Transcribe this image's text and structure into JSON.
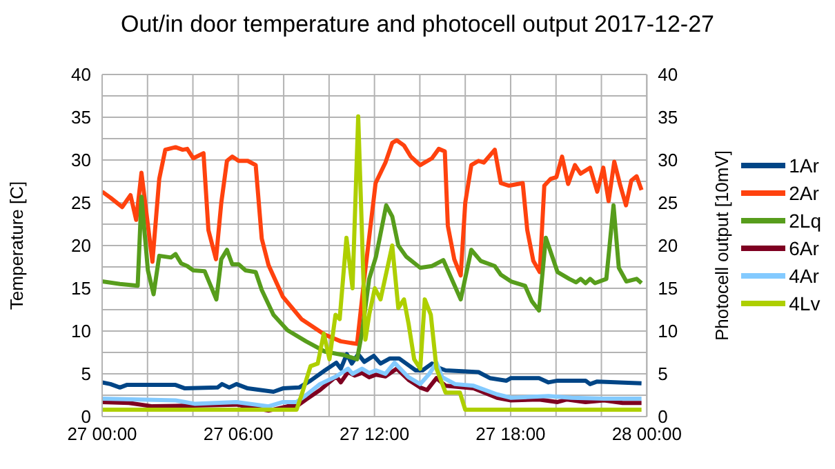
{
  "chart_data": {
    "type": "line",
    "title": "Out/in door temperature and photocell output 2017-12-27",
    "ylabel": "Temperature [C]",
    "y2label": "Photocell output [10mV]",
    "xlim": [
      "2017-12-27T00:00",
      "2017-12-28T00:00"
    ],
    "xticks": [
      {
        "value": "2017-12-27T00:00",
        "label": "27 00:00"
      },
      {
        "value": "2017-12-27T02:00",
        "label": null
      },
      {
        "value": "2017-12-27T04:00",
        "label": null
      },
      {
        "value": "2017-12-27T06:00",
        "label": "27 06:00"
      },
      {
        "value": "2017-12-27T08:00",
        "label": null
      },
      {
        "value": "2017-12-27T10:00",
        "label": null
      },
      {
        "value": "2017-12-27T12:00",
        "label": "27 12:00"
      },
      {
        "value": "2017-12-27T14:00",
        "label": null
      },
      {
        "value": "2017-12-27T16:00",
        "label": null
      },
      {
        "value": "2017-12-27T18:00",
        "label": "27 18:00"
      },
      {
        "value": "2017-12-27T20:00",
        "label": null
      },
      {
        "value": "2017-12-27T22:00",
        "label": null
      },
      {
        "value": "2017-12-28T00:00",
        "label": "28 00:00"
      }
    ],
    "ylim": [
      0,
      40
    ],
    "yticks": [
      0,
      {
        "value": 2.5,
        "label": null
      },
      5,
      {
        "value": 7.5,
        "label": null
      },
      10,
      {
        "value": 12.5,
        "label": null
      },
      15,
      {
        "value": 17.5,
        "label": null
      },
      20,
      {
        "value": 22.5,
        "label": null
      },
      25,
      {
        "value": 27.5,
        "label": null
      },
      30,
      {
        "value": 32.5,
        "label": null
      },
      35,
      {
        "value": 37.5,
        "label": null
      },
      40
    ],
    "y2lim": [
      0,
      40
    ],
    "y2ticks": [
      0,
      5,
      10,
      15,
      20,
      25,
      30,
      35,
      40
    ],
    "grid": true,
    "legend": "right",
    "marker": "none",
    "line_style": "solid",
    "series": [
      {
        "name": "1Ar",
        "color": "#004586",
        "x": [
          "2017-12-27T00:00",
          "2017-12-27T00:22",
          "2017-12-27T00:47",
          "2017-12-27T01:05",
          "2017-12-27T03:14",
          "2017-12-27T03:39",
          "2017-12-27T05:05",
          "2017-12-27T05:17",
          "2017-12-27T05:36",
          "2017-12-27T05:55",
          "2017-12-27T06:25",
          "2017-12-27T07:33",
          "2017-12-27T07:58",
          "2017-12-27T08:41",
          "2017-12-27T09:11",
          "2017-12-27T09:49",
          "2017-12-27T10:19",
          "2017-12-27T10:31",
          "2017-12-27T10:47",
          "2017-12-27T11:00",
          "2017-12-27T11:17",
          "2017-12-27T11:33",
          "2017-12-27T11:58",
          "2017-12-27T12:16",
          "2017-12-27T12:41",
          "2017-12-27T13:05",
          "2017-12-27T13:24",
          "2017-12-27T13:49",
          "2017-12-27T14:07",
          "2017-12-27T14:32",
          "2017-12-27T14:50",
          "2017-12-27T15:08",
          "2017-12-27T16:35",
          "2017-12-27T17:05",
          "2017-12-27T17:49",
          "2017-12-27T18:01",
          "2017-12-27T19:15",
          "2017-12-27T19:40",
          "2017-12-27T20:04",
          "2017-12-27T21:18",
          "2017-12-27T21:30",
          "2017-12-27T21:49",
          "2017-12-27T23:46"
        ],
        "values": [
          4.0,
          3.8,
          3.4,
          3.7,
          3.7,
          3.3,
          3.4,
          3.8,
          3.4,
          3.8,
          3.3,
          2.9,
          3.3,
          3.4,
          4.2,
          5.4,
          6.3,
          5.6,
          7.3,
          6.2,
          7.3,
          6.4,
          7.1,
          6.2,
          6.8,
          6.8,
          6.2,
          5.4,
          5.4,
          6.2,
          5.7,
          5.4,
          5.2,
          4.5,
          4.2,
          4.5,
          4.5,
          4.0,
          4.2,
          4.2,
          3.8,
          4.1,
          3.9
        ]
      },
      {
        "name": "2Ar",
        "color": "#ff420e",
        "x": [
          "2017-12-27T00:00",
          "2017-12-27T00:22",
          "2017-12-27T00:53",
          "2017-12-27T01:15",
          "2017-12-27T01:30",
          "2017-12-27T01:44",
          "2017-12-27T02:13",
          "2017-12-27T02:31",
          "2017-12-27T02:47",
          "2017-12-27T03:14",
          "2017-12-27T03:33",
          "2017-12-27T03:45",
          "2017-12-27T04:01",
          "2017-12-27T04:28",
          "2017-12-27T04:41",
          "2017-12-27T05:01",
          "2017-12-27T05:15",
          "2017-12-27T05:30",
          "2017-12-27T05:44",
          "2017-12-27T06:01",
          "2017-12-27T06:25",
          "2017-12-27T06:46",
          "2017-12-27T07:02",
          "2017-12-27T07:20",
          "2017-12-27T07:58",
          "2017-12-27T08:47",
          "2017-12-27T09:48",
          "2017-12-27T10:31",
          "2017-12-27T11:14",
          "2017-12-27T11:33",
          "2017-12-27T12:03",
          "2017-12-27T12:29",
          "2017-12-27T12:47",
          "2017-12-27T12:59",
          "2017-12-27T13:18",
          "2017-12-27T13:36",
          "2017-12-27T14:01",
          "2017-12-27T14:32",
          "2017-12-27T14:50",
          "2017-12-27T15:06",
          "2017-12-27T15:14",
          "2017-12-27T15:31",
          "2017-12-27T15:48",
          "2017-12-27T16:00",
          "2017-12-27T16:16",
          "2017-12-27T16:35",
          "2017-12-27T16:49",
          "2017-12-27T17:18",
          "2017-12-27T17:34",
          "2017-12-27T17:55",
          "2017-12-27T18:32",
          "2017-12-27T18:44",
          "2017-12-27T19:00",
          "2017-12-27T19:17",
          "2017-12-27T19:29",
          "2017-12-27T19:46",
          "2017-12-27T20:01",
          "2017-12-27T20:16",
          "2017-12-27T20:32",
          "2017-12-27T20:50",
          "2017-12-27T21:05",
          "2017-12-27T21:30",
          "2017-12-27T21:49",
          "2017-12-27T22:05",
          "2017-12-27T22:19",
          "2017-12-27T22:34",
          "2017-12-27T22:50",
          "2017-12-27T23:05",
          "2017-12-27T23:19",
          "2017-12-27T23:33",
          "2017-12-27T23:46"
        ],
        "values": [
          26.3,
          25.6,
          24.5,
          25.9,
          23.0,
          28.5,
          18.1,
          27.8,
          31.2,
          31.5,
          31.2,
          31.3,
          30.2,
          30.8,
          21.8,
          18.4,
          25.0,
          29.9,
          30.4,
          29.9,
          29.9,
          29.4,
          20.8,
          17.7,
          14.0,
          11.4,
          9.6,
          8.8,
          8.5,
          16.1,
          27.3,
          29.7,
          32.0,
          32.3,
          31.7,
          30.4,
          29.4,
          30.2,
          31.3,
          31.0,
          22.3,
          18.4,
          16.5,
          25.0,
          29.4,
          29.9,
          29.7,
          31.2,
          27.3,
          27.0,
          27.3,
          21.8,
          18.2,
          16.9,
          27.0,
          27.8,
          28.0,
          30.4,
          27.2,
          29.4,
          28.4,
          29.1,
          26.3,
          29.1,
          25.2,
          29.8,
          27.0,
          24.7,
          27.6,
          28.1,
          26.5
        ]
      },
      {
        "name": "2Lq",
        "color": "#579d1c",
        "x": [
          "2017-12-27T00:00",
          "2017-12-27T00:47",
          "2017-12-27T01:34",
          "2017-12-27T01:44",
          "2017-12-27T02:01",
          "2017-12-27T02:16",
          "2017-12-27T02:31",
          "2017-12-27T03:02",
          "2017-12-27T03:14",
          "2017-12-27T03:29",
          "2017-12-27T03:45",
          "2017-12-27T04:01",
          "2017-12-27T04:31",
          "2017-12-27T05:02",
          "2017-12-27T05:15",
          "2017-12-27T05:30",
          "2017-12-27T05:44",
          "2017-12-27T06:01",
          "2017-12-27T06:19",
          "2017-12-27T06:46",
          "2017-12-27T07:02",
          "2017-12-27T07:33",
          "2017-12-27T08:10",
          "2017-12-27T08:59",
          "2017-12-27T09:49",
          "2017-12-27T10:38",
          "2017-12-27T11:14",
          "2017-12-27T11:27",
          "2017-12-27T11:46",
          "2017-12-27T12:04",
          "2017-12-27T12:31",
          "2017-12-27T12:47",
          "2017-12-27T13:03",
          "2017-12-27T13:24",
          "2017-12-27T14:01",
          "2017-12-27T14:32",
          "2017-12-27T15:02",
          "2017-12-27T15:48",
          "2017-12-27T16:16",
          "2017-12-27T16:41",
          "2017-12-27T17:18",
          "2017-12-27T17:34",
          "2017-12-27T18:01",
          "2017-12-27T18:38",
          "2017-12-27T18:56",
          "2017-12-27T19:15",
          "2017-12-27T19:33",
          "2017-12-27T20:04",
          "2017-12-27T20:35",
          "2017-12-27T20:53",
          "2017-12-27T21:05",
          "2017-12-27T21:18",
          "2017-12-27T21:30",
          "2017-12-27T21:43",
          "2017-12-27T22:13",
          "2017-12-27T22:32",
          "2017-12-27T22:46",
          "2017-12-27T23:06",
          "2017-12-27T23:33",
          "2017-12-27T23:46"
        ],
        "values": [
          15.8,
          15.5,
          15.3,
          25.7,
          17.1,
          14.3,
          18.8,
          18.6,
          19.0,
          17.9,
          17.6,
          17.1,
          17.0,
          13.7,
          18.4,
          19.5,
          17.8,
          17.8,
          17.1,
          16.9,
          14.8,
          11.9,
          10.1,
          8.8,
          7.6,
          7.2,
          6.7,
          9.8,
          16.1,
          18.7,
          24.7,
          23.4,
          20.0,
          18.7,
          17.4,
          17.6,
          18.3,
          13.7,
          19.5,
          18.2,
          17.6,
          16.6,
          15.8,
          15.3,
          13.5,
          12.4,
          20.9,
          16.9,
          16.1,
          15.7,
          16.1,
          15.6,
          16.1,
          15.6,
          16.1,
          24.7,
          17.4,
          15.8,
          16.1,
          15.6
        ]
      },
      {
        "name": "6Ar",
        "color": "#7e0021",
        "x": [
          "2017-12-27T00:00",
          "2017-12-27T01:11",
          "2017-12-27T02:13",
          "2017-12-27T05:55",
          "2017-12-27T07:20",
          "2017-12-27T08:10",
          "2017-12-27T08:34",
          "2017-12-27T08:59",
          "2017-12-27T09:36",
          "2017-12-27T10:19",
          "2017-12-27T10:31",
          "2017-12-27T10:50",
          "2017-12-27T11:08",
          "2017-12-27T11:27",
          "2017-12-27T11:46",
          "2017-12-27T12:04",
          "2017-12-27T12:29",
          "2017-12-27T12:59",
          "2017-12-27T13:30",
          "2017-12-27T14:01",
          "2017-12-27T14:19",
          "2017-12-27T14:44",
          "2017-12-27T15:08",
          "2017-12-27T16:22",
          "2017-12-27T17:24",
          "2017-12-27T18:01",
          "2017-12-27T19:15",
          "2017-12-27T20:04",
          "2017-12-27T20:29",
          "2017-12-27T21:18",
          "2017-12-27T22:07",
          "2017-12-27T22:56",
          "2017-12-27T23:46"
        ],
        "values": [
          1.7,
          1.6,
          1.2,
          1.4,
          0.7,
          1.2,
          1.2,
          2.0,
          3.1,
          4.7,
          4.0,
          5.2,
          4.8,
          5.1,
          4.6,
          4.9,
          4.7,
          5.6,
          4.3,
          3.4,
          3.1,
          4.5,
          3.6,
          3.3,
          2.2,
          1.9,
          2.0,
          1.7,
          2.0,
          1.7,
          1.9,
          1.6,
          1.6
        ]
      },
      {
        "name": "4Ar",
        "color": "#83caff",
        "x": [
          "2017-12-27T00:00",
          "2017-12-27T03:14",
          "2017-12-27T04:04",
          "2017-12-27T05:55",
          "2017-12-27T07:20",
          "2017-12-27T07:58",
          "2017-12-27T08:34",
          "2017-12-27T08:59",
          "2017-12-27T09:36",
          "2017-12-27T10:19",
          "2017-12-27T10:50",
          "2017-12-27T11:02",
          "2017-12-27T11:27",
          "2017-12-27T11:46",
          "2017-12-27T12:04",
          "2017-12-27T12:29",
          "2017-12-27T12:53",
          "2017-12-27T13:30",
          "2017-12-27T14:01",
          "2017-12-27T14:25",
          "2017-12-27T14:44",
          "2017-12-27T14:59",
          "2017-12-27T15:33",
          "2017-12-27T16:22",
          "2017-12-27T17:24",
          "2017-12-27T18:01",
          "2017-12-27T19:40",
          "2017-12-27T20:41",
          "2017-12-27T22:07",
          "2017-12-27T23:46"
        ],
        "values": [
          2.1,
          1.9,
          1.5,
          1.7,
          1.2,
          1.7,
          1.7,
          2.5,
          3.8,
          4.7,
          5.6,
          5.0,
          5.6,
          5.1,
          5.4,
          5.0,
          6.3,
          4.6,
          3.8,
          5.0,
          6.3,
          4.6,
          3.8,
          3.6,
          2.6,
          2.2,
          2.4,
          2.2,
          2.1,
          2.1
        ]
      },
      {
        "name": "4Lv",
        "color": "#aecf00",
        "x": [
          "2017-12-27T00:00",
          "2017-12-27T08:34",
          "2017-12-27T08:47",
          "2017-12-27T09:11",
          "2017-12-27T09:30",
          "2017-12-27T09:46",
          "2017-12-27T10:01",
          "2017-12-27T10:17",
          "2017-12-27T10:28",
          "2017-12-27T10:46",
          "2017-12-27T11:02",
          "2017-12-27T11:17",
          "2017-12-27T11:36",
          "2017-12-27T11:46",
          "2017-12-27T12:01",
          "2017-12-27T12:16",
          "2017-12-27T12:47",
          "2017-12-27T13:03",
          "2017-12-27T13:18",
          "2017-12-27T13:30",
          "2017-12-27T13:45",
          "2017-12-27T14:01",
          "2017-12-27T14:13",
          "2017-12-27T14:29",
          "2017-12-27T14:44",
          "2017-12-27T15:08",
          "2017-12-27T15:46",
          "2017-12-27T16:00",
          "2017-12-27T23:46"
        ],
        "values": [
          0.8,
          0.8,
          2.5,
          5.9,
          6.2,
          9.7,
          6.7,
          11.9,
          11.4,
          20.9,
          15.0,
          35.1,
          9.0,
          11.9,
          15.0,
          13.7,
          20.0,
          12.7,
          13.7,
          10.9,
          6.7,
          5.6,
          13.7,
          11.9,
          5.6,
          2.8,
          2.8,
          0.8,
          0.8
        ]
      }
    ]
  }
}
